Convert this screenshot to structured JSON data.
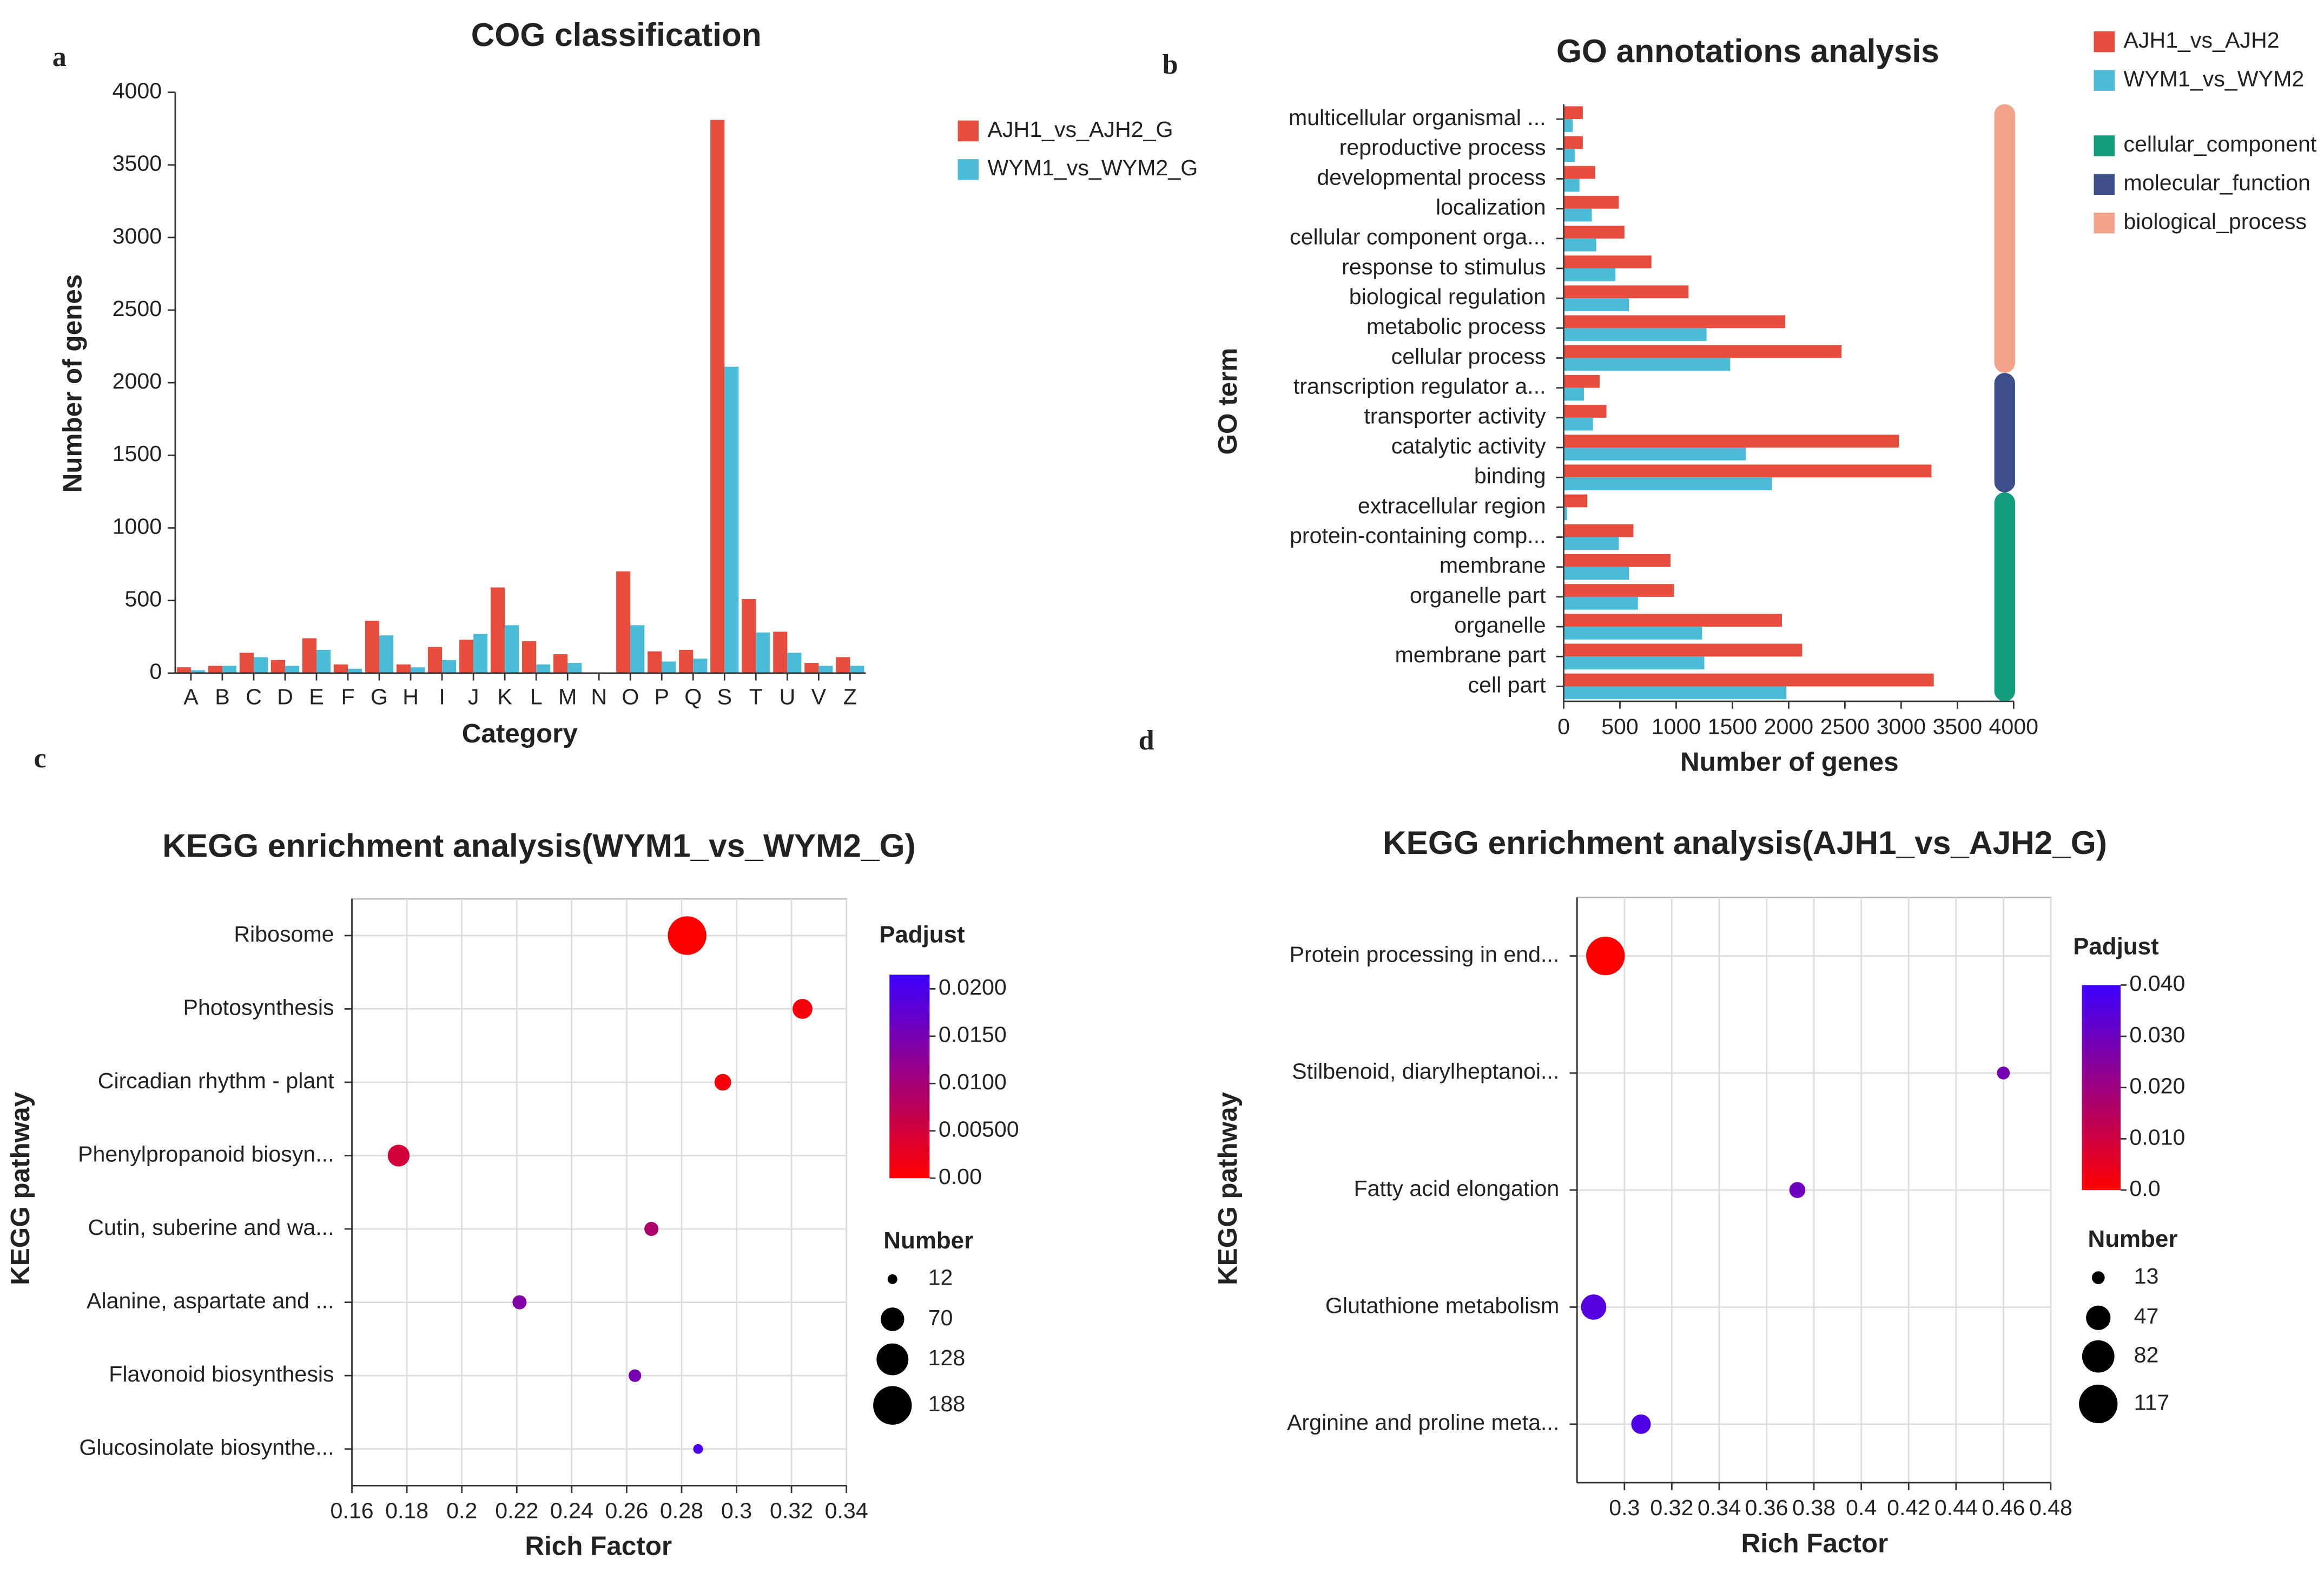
{
  "chart_data": [
    {
      "type": "bar",
      "panel": "a",
      "title": "COG classification",
      "xlabel": "Category",
      "ylabel": "Number of genes",
      "categories": [
        "A",
        "B",
        "C",
        "D",
        "E",
        "F",
        "G",
        "H",
        "I",
        "J",
        "K",
        "L",
        "M",
        "N",
        "O",
        "P",
        "Q",
        "S",
        "T",
        "U",
        "V",
        "Z"
      ],
      "series": [
        {
          "name": "AJH1_vs_AJH2_G",
          "color": "#e84c3d",
          "values": [
            40,
            50,
            140,
            90,
            240,
            60,
            360,
            60,
            180,
            230,
            590,
            220,
            130,
            0,
            700,
            150,
            160,
            3810,
            510,
            285,
            70,
            110
          ]
        },
        {
          "name": "WYM1_vs_WYM2_G",
          "color": "#4bbcd8",
          "values": [
            20,
            50,
            110,
            50,
            160,
            30,
            260,
            40,
            90,
            270,
            330,
            60,
            70,
            0,
            330,
            80,
            100,
            2110,
            280,
            140,
            50,
            50
          ]
        }
      ],
      "ylim": [
        0,
        4000
      ],
      "yticks": [
        0,
        500,
        1000,
        1500,
        2000,
        2500,
        3000,
        3500,
        4000
      ]
    },
    {
      "type": "barh",
      "panel": "b",
      "title": "GO annotations analysis",
      "xlabel": "Number of genes",
      "ylabel": "GO term",
      "categories": [
        "multicellular organismal ...",
        "reproductive process",
        "developmental process",
        "localization",
        "cellular component orga...",
        "response to stimulus",
        "biological regulation",
        "metabolic process",
        "cellular process",
        "transcription regulator a...",
        "transporter activity",
        "catalytic activity",
        "binding",
        "extracellular region",
        "protein-containing comp...",
        "membrane",
        "organelle part",
        "organelle",
        "membrane part",
        "cell part"
      ],
      "category_group": [
        "biological_process",
        "biological_process",
        "biological_process",
        "biological_process",
        "biological_process",
        "biological_process",
        "biological_process",
        "biological_process",
        "biological_process",
        "molecular_function",
        "molecular_function",
        "molecular_function",
        "molecular_function",
        "cellular_component",
        "cellular_component",
        "cellular_component",
        "cellular_component",
        "cellular_component",
        "cellular_component",
        "cellular_component"
      ],
      "groups": [
        {
          "name": "cellular_component",
          "color": "#129e7e"
        },
        {
          "name": "molecular_function",
          "color": "#3c4f8a"
        },
        {
          "name": "biological_process",
          "color": "#f2a38a"
        }
      ],
      "series": [
        {
          "name": "AJH1_vs_AJH2",
          "color": "#e84c3d",
          "values": [
            170,
            170,
            280,
            490,
            540,
            780,
            1110,
            1970,
            2470,
            320,
            380,
            2980,
            3270,
            210,
            620,
            950,
            980,
            1940,
            2120,
            3290
          ]
        },
        {
          "name": "WYM1_vs_WYM2",
          "color": "#4bbcd8",
          "values": [
            80,
            100,
            140,
            250,
            290,
            460,
            580,
            1270,
            1480,
            180,
            260,
            1620,
            1850,
            30,
            490,
            580,
            660,
            1230,
            1250,
            1980
          ]
        }
      ],
      "xlim": [
        0,
        4000
      ],
      "xticks": [
        0,
        500,
        1000,
        1500,
        2000,
        2500,
        3000,
        3500,
        4000
      ]
    },
    {
      "type": "bubble",
      "panel": "c",
      "title": "KEGG enrichment analysis(WYM1_vs_WYM2_G)",
      "xlabel": "Rich Factor",
      "ylabel": "KEGG pathway",
      "categories": [
        "Ribosome",
        "Photosynthesis",
        "Circadian rhythm - plant",
        "Phenylpropanoid biosyn...",
        "Cutin, suberine and wa...",
        "Alanine, aspartate and ...",
        "Flavonoid biosynthesis",
        "Glucosinolate biosynthe..."
      ],
      "values": [
        0.282,
        0.324,
        0.295,
        0.177,
        0.269,
        0.221,
        0.263,
        0.286
      ],
      "sizes": [
        188,
        50,
        35,
        60,
        25,
        25,
        20,
        12
      ],
      "padjust": [
        0,
        0.001,
        0.001,
        0.005,
        0.009,
        0.014,
        0.015,
        0.02
      ],
      "xlim": [
        0.16,
        0.34
      ],
      "xticks": [
        0.16,
        0.18,
        0.2,
        0.22,
        0.24,
        0.26,
        0.28,
        0.3,
        0.32,
        0.34
      ],
      "color_title": "Padjust",
      "colormap": [
        "#ff0000",
        "#3c00ff"
      ],
      "clim": [
        0,
        0.0215
      ],
      "cticks": [
        {
          "value": 0,
          "label": "0.00"
        },
        {
          "value": 0.005,
          "label": "0.00500"
        },
        {
          "value": 0.01,
          "label": "0.0100"
        },
        {
          "value": 0.015,
          "label": "0.0150"
        },
        {
          "value": 0.02,
          "label": "0.0200"
        }
      ],
      "size_title": "Number",
      "size_ticks": [
        12,
        70,
        128,
        188
      ]
    },
    {
      "type": "bubble",
      "panel": "d",
      "title": "KEGG enrichment analysis(AJH1_vs_AJH2_G)",
      "xlabel": "Rich Factor",
      "ylabel": "KEGG pathway",
      "categories": [
        "Protein processing in end...",
        "Stilbenoid, diarylheptanoi...",
        "Fatty acid elongation",
        "Glutathione metabolism",
        "Arginine and proline meta..."
      ],
      "values": [
        0.292,
        0.46,
        0.373,
        0.287,
        0.307
      ],
      "sizes": [
        117,
        13,
        20,
        50,
        30
      ],
      "padjust": [
        0,
        0.028,
        0.03,
        0.035,
        0.036
      ],
      "xlim": [
        0.28,
        0.48
      ],
      "xticks": [
        0.3,
        0.32,
        0.34,
        0.36,
        0.38,
        0.4,
        0.42,
        0.44,
        0.46,
        0.48
      ],
      "color_title": "Padjust",
      "colormap": [
        "#ff0000",
        "#3c00ff"
      ],
      "clim": [
        0,
        0.04
      ],
      "cticks": [
        {
          "value": 0,
          "label": "0.0"
        },
        {
          "value": 0.01,
          "label": "0.010"
        },
        {
          "value": 0.02,
          "label": "0.020"
        },
        {
          "value": 0.03,
          "label": "0.030"
        },
        {
          "value": 0.04,
          "label": "0.040"
        }
      ],
      "size_title": "Number",
      "size_ticks": [
        13,
        47,
        82,
        117
      ]
    }
  ]
}
